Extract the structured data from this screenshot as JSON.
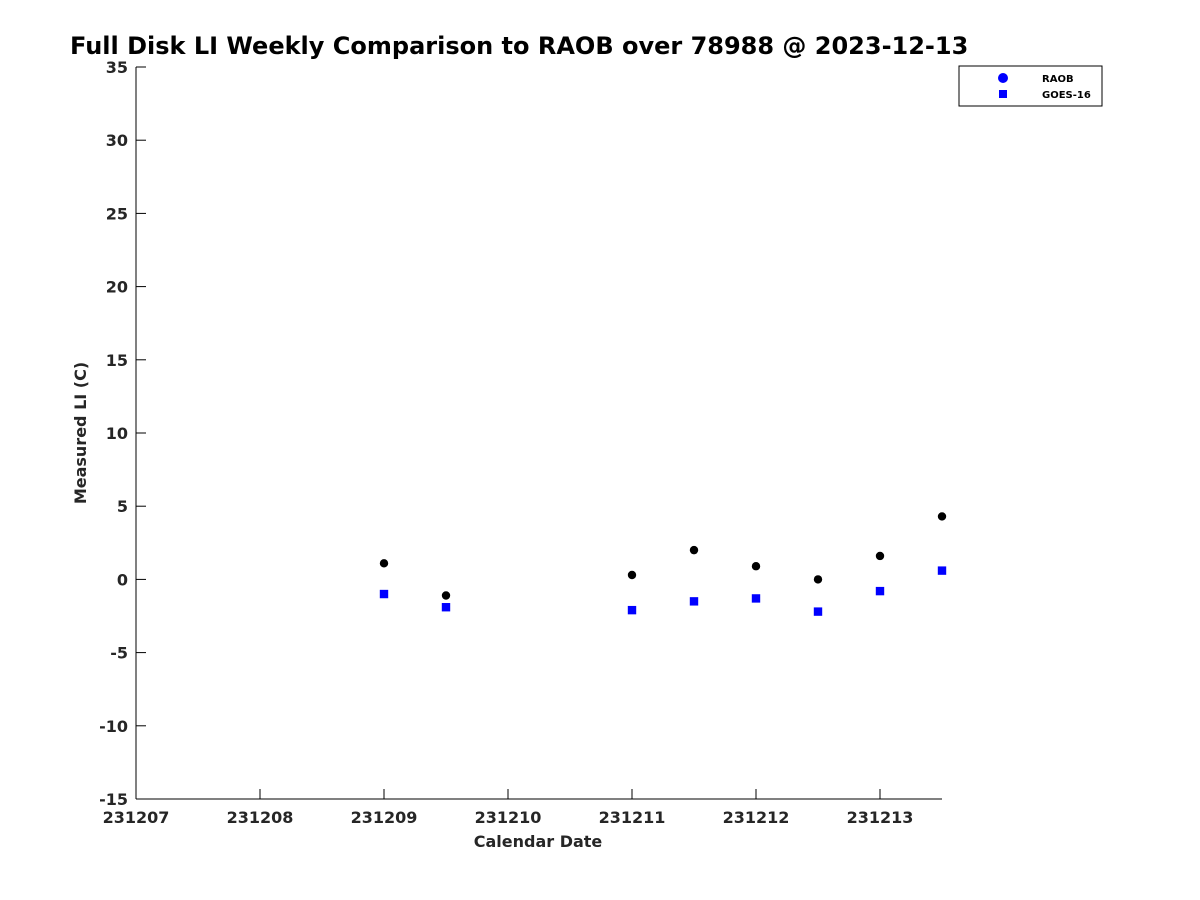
{
  "chart_data": {
    "type": "scatter",
    "title": "Full Disk LI Weekly Comparison to RAOB over 78988 @ 2023-12-13",
    "xlabel": "Calendar Date",
    "ylabel": "Measured LI (C)",
    "x_tick_labels": [
      "231207",
      "231208",
      "231209",
      "231210",
      "231211",
      "231212",
      "231213"
    ],
    "y_ticks": [
      35,
      30,
      25,
      20,
      15,
      10,
      5,
      0,
      -5,
      -10,
      -15
    ],
    "xlim": [
      "231207",
      "231213 12Z"
    ],
    "ylim": [
      -15,
      35
    ],
    "grid": false,
    "legend_position": "top-right",
    "series": [
      {
        "name": "RAOB",
        "marker": "circle",
        "color": "#000000",
        "legend_color": "#0000ff",
        "x": [
          "231209 00Z",
          "231209 12Z",
          "231211 00Z",
          "231211 12Z",
          "231212 00Z",
          "231212 12Z",
          "231213 00Z",
          "231213 12Z"
        ],
        "values": [
          1.1,
          -1.1,
          0.3,
          2.0,
          0.9,
          0.0,
          1.6,
          4.3
        ]
      },
      {
        "name": "GOES-16",
        "marker": "square",
        "color": "#0000ff",
        "x": [
          "231209 00Z",
          "231209 12Z",
          "231211 00Z",
          "231211 12Z",
          "231212 00Z",
          "231212 12Z",
          "231213 00Z",
          "231213 12Z"
        ],
        "values": [
          -1.0,
          -1.9,
          -2.1,
          -1.5,
          -1.3,
          -2.2,
          -0.8,
          0.6
        ]
      }
    ]
  }
}
